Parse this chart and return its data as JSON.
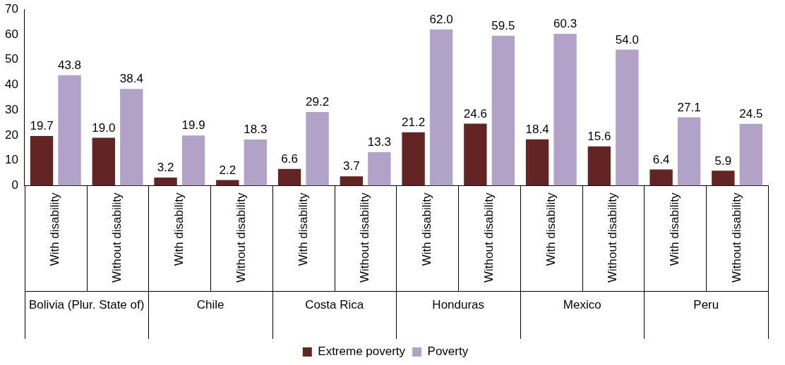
{
  "chart_data": {
    "type": "bar",
    "categories": [
      "With disability",
      "Without disability",
      "With disability",
      "Without disability",
      "With disability",
      "Without disability",
      "With disability",
      "Without disability",
      "With disability",
      "Without disability",
      "With disability",
      "Without disability"
    ],
    "annotations": [
      "Bolivia (Plur. State of)",
      "Chile",
      "Costa Rica",
      "Honduras",
      "Mexico",
      "Peru"
    ],
    "series": [
      {
        "name": "Extreme poverty",
        "color": "#632523",
        "values": [
          19.7,
          19.0,
          3.2,
          2.2,
          6.6,
          3.7,
          21.2,
          24.6,
          18.4,
          15.6,
          6.4,
          5.9
        ],
        "value_labels": [
          "19.7",
          "19.0",
          "3.2",
          "2.2",
          "6.6",
          "3.7",
          "21.2",
          "24.6",
          "18.4",
          "15.6",
          "6.4",
          "5.9"
        ]
      },
      {
        "name": "Poverty",
        "color": "#b3a2c7",
        "values": [
          43.8,
          38.4,
          19.9,
          18.3,
          29.2,
          13.3,
          62.0,
          59.5,
          60.3,
          54.0,
          27.1,
          24.5
        ],
        "value_labels": [
          "43.8",
          "38.4",
          "19.9",
          "18.3",
          "29.2",
          "13.3",
          "62.0",
          "59.5",
          "60.3",
          "54.0",
          "27.1",
          "24.5"
        ]
      }
    ],
    "ylim": [
      0,
      70
    ],
    "yticks": [
      0,
      10,
      20,
      30,
      40,
      50,
      60,
      70
    ],
    "grid": false,
    "legend": "bottom"
  }
}
